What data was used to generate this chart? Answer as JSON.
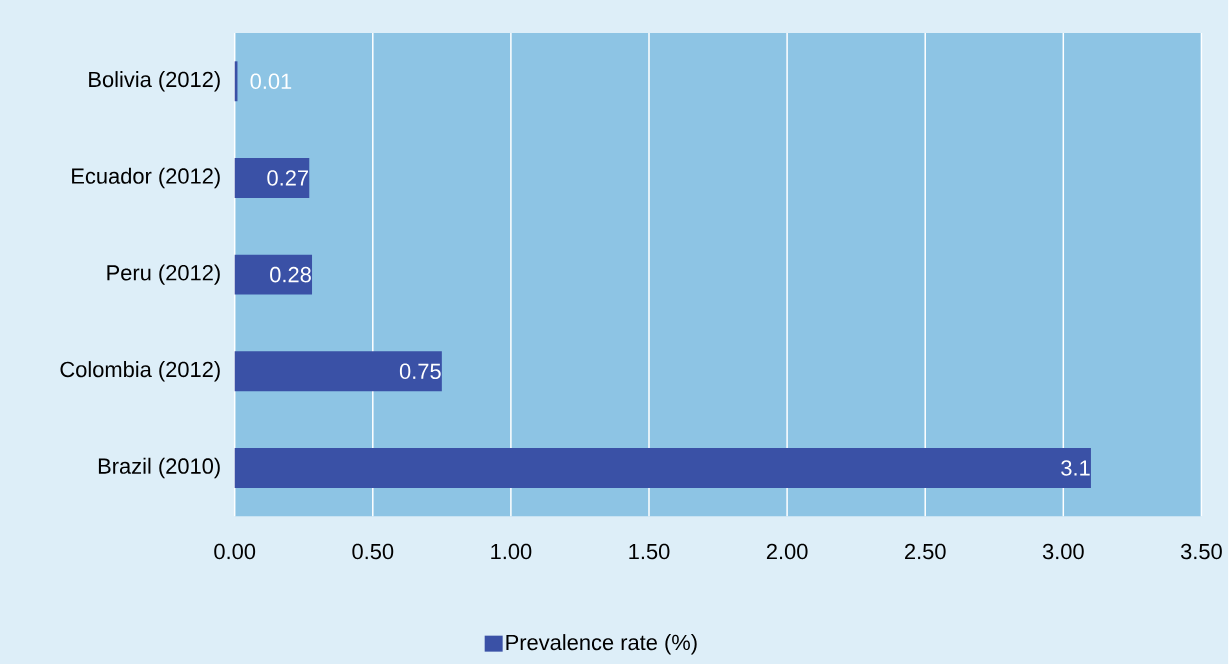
{
  "chart_data": {
    "type": "bar",
    "orientation": "horizontal",
    "categories": [
      "Bolivia (2012)",
      "Ecuador (2012)",
      "Peru (2012)",
      "Colombia (2012)",
      "Brazil (2010)"
    ],
    "series": [
      {
        "name": "Prevalence rate (%)",
        "color": "#3a51a6",
        "values": [
          0.01,
          0.27,
          0.28,
          0.75,
          3.1
        ]
      }
    ],
    "xlim": [
      0,
      3.5
    ],
    "xticks": [
      {
        "value": 0,
        "label": "0.00"
      },
      {
        "value": 0.5,
        "label": "0.50"
      },
      {
        "value": 1,
        "label": "1.00"
      },
      {
        "value": 1.5,
        "label": "1.50"
      },
      {
        "value": 2,
        "label": "2.00"
      },
      {
        "value": 2.5,
        "label": "2.50"
      },
      {
        "value": 3,
        "label": "3.00"
      },
      {
        "value": 3.5,
        "label": "3.50"
      }
    ],
    "grid": "x",
    "data_labels": true,
    "legend": "bottom"
  }
}
